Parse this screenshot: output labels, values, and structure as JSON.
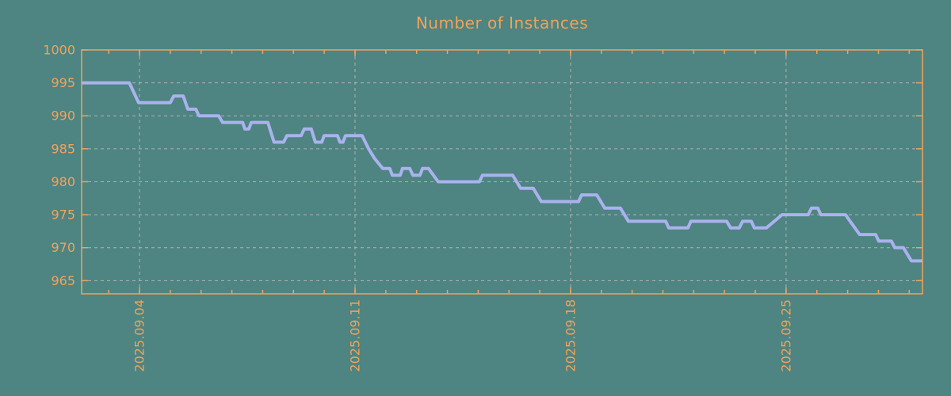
{
  "colors": {
    "background": "#4e8481",
    "axis": "#f1a35c",
    "text": "#f1a35c",
    "grid": "#b0b4b2",
    "series_line": "#aab2ee"
  },
  "chart_data": {
    "type": "line",
    "title": "Number of Instances",
    "grid": true,
    "legend": false,
    "x_axis": {
      "unit": "date",
      "xlim_days": [
        2.12,
        29.43
      ],
      "major_ticks": [
        {
          "day": 4,
          "label": "2025.09.04"
        },
        {
          "day": 11,
          "label": "2025.09.11"
        },
        {
          "day": 18,
          "label": "2025.09.18"
        },
        {
          "day": 25,
          "label": "2025.09.25"
        }
      ],
      "minor_tick_days": [
        3,
        4,
        5,
        6,
        7,
        8,
        9,
        10,
        11,
        12,
        13,
        14,
        15,
        16,
        17,
        18,
        19,
        20,
        21,
        22,
        23,
        24,
        25,
        26,
        27,
        28,
        29
      ]
    },
    "y_axis": {
      "ylim": [
        963,
        1000
      ],
      "ticks": [
        965,
        970,
        975,
        980,
        985,
        990,
        995,
        1000
      ]
    },
    "series": [
      {
        "name": "instances",
        "color": "#aab2ee",
        "points_day_value": [
          [
            2.12,
            995
          ],
          [
            3.67,
            995
          ],
          [
            3.97,
            992
          ],
          [
            5.0,
            992
          ],
          [
            5.11,
            993
          ],
          [
            5.42,
            993
          ],
          [
            5.57,
            991
          ],
          [
            5.83,
            991
          ],
          [
            5.93,
            990
          ],
          [
            6.57,
            990
          ],
          [
            6.7,
            989
          ],
          [
            7.35,
            989
          ],
          [
            7.42,
            988
          ],
          [
            7.55,
            988
          ],
          [
            7.63,
            989
          ],
          [
            8.17,
            989
          ],
          [
            8.37,
            986
          ],
          [
            8.68,
            986
          ],
          [
            8.79,
            987
          ],
          [
            9.25,
            987
          ],
          [
            9.35,
            988
          ],
          [
            9.58,
            988
          ],
          [
            9.71,
            986
          ],
          [
            9.92,
            986
          ],
          [
            10.0,
            987
          ],
          [
            10.43,
            987
          ],
          [
            10.51,
            986
          ],
          [
            10.61,
            986
          ],
          [
            10.69,
            987
          ],
          [
            11.23,
            987
          ],
          [
            11.44,
            985
          ],
          [
            11.64,
            983.5
          ],
          [
            11.9,
            982
          ],
          [
            12.13,
            982
          ],
          [
            12.21,
            981
          ],
          [
            12.47,
            981
          ],
          [
            12.54,
            982
          ],
          [
            12.78,
            982
          ],
          [
            12.88,
            981
          ],
          [
            13.11,
            981
          ],
          [
            13.19,
            982
          ],
          [
            13.39,
            982
          ],
          [
            13.7,
            980
          ],
          [
            15.04,
            980
          ],
          [
            15.14,
            981
          ],
          [
            16.12,
            981
          ],
          [
            16.38,
            979
          ],
          [
            16.79,
            979
          ],
          [
            17.05,
            977
          ],
          [
            18.26,
            977
          ],
          [
            18.36,
            978
          ],
          [
            18.85,
            978
          ],
          [
            19.11,
            976
          ],
          [
            19.62,
            976
          ],
          [
            19.88,
            974
          ],
          [
            21.09,
            974
          ],
          [
            21.19,
            973
          ],
          [
            21.81,
            973
          ],
          [
            21.91,
            974
          ],
          [
            23.07,
            974
          ],
          [
            23.2,
            973
          ],
          [
            23.48,
            973
          ],
          [
            23.59,
            974
          ],
          [
            23.87,
            974
          ],
          [
            23.97,
            973
          ],
          [
            24.36,
            973
          ],
          [
            24.87,
            975
          ],
          [
            25.72,
            975
          ],
          [
            25.82,
            976
          ],
          [
            26.03,
            976
          ],
          [
            26.13,
            975
          ],
          [
            26.93,
            975
          ],
          [
            27.08,
            974
          ],
          [
            27.39,
            972
          ],
          [
            27.91,
            972
          ],
          [
            28.01,
            971
          ],
          [
            28.42,
            971
          ],
          [
            28.53,
            970
          ],
          [
            28.81,
            970
          ],
          [
            29.07,
            968
          ],
          [
            29.43,
            968
          ]
        ]
      }
    ]
  }
}
